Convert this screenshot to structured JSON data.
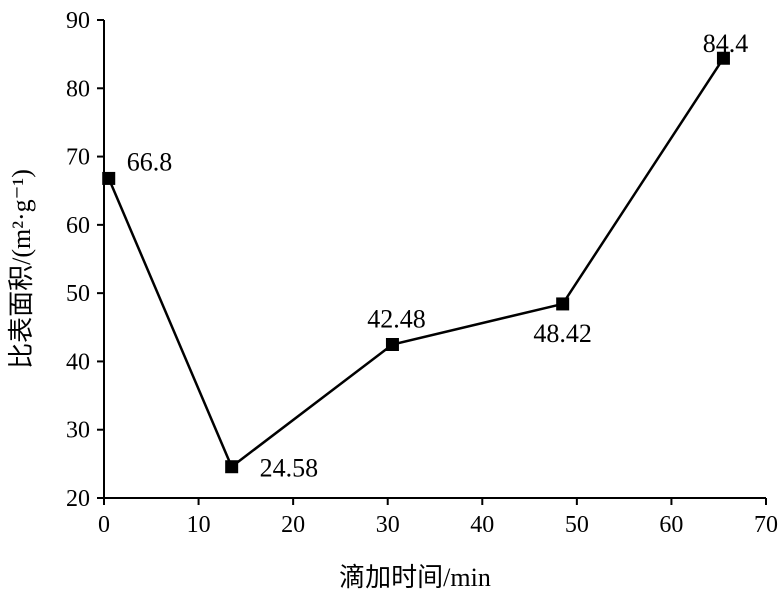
{
  "chart_data": {
    "type": "line",
    "title": "",
    "xlabel": "滴加时间/min",
    "ylabel": "比表面积/(m²·g⁻¹)",
    "xlim": [
      0,
      70
    ],
    "ylim": [
      20,
      90
    ],
    "xticks": [
      0,
      10,
      20,
      30,
      40,
      50,
      60,
      70
    ],
    "yticks": [
      20,
      30,
      40,
      50,
      60,
      70,
      80,
      90
    ],
    "grid": false,
    "legend": "none",
    "series": [
      {
        "marker": "square",
        "color": "#000000",
        "points": [
          {
            "x": 0.5,
            "y": 66.8,
            "label": "66.8"
          },
          {
            "x": 13.5,
            "y": 24.58,
            "label": "24.58"
          },
          {
            "x": 30.5,
            "y": 42.48,
            "label": "42.48"
          },
          {
            "x": 48.5,
            "y": 48.42,
            "label": "48.42"
          },
          {
            "x": 65.5,
            "y": 84.4,
            "label": "84.4"
          }
        ]
      }
    ]
  }
}
